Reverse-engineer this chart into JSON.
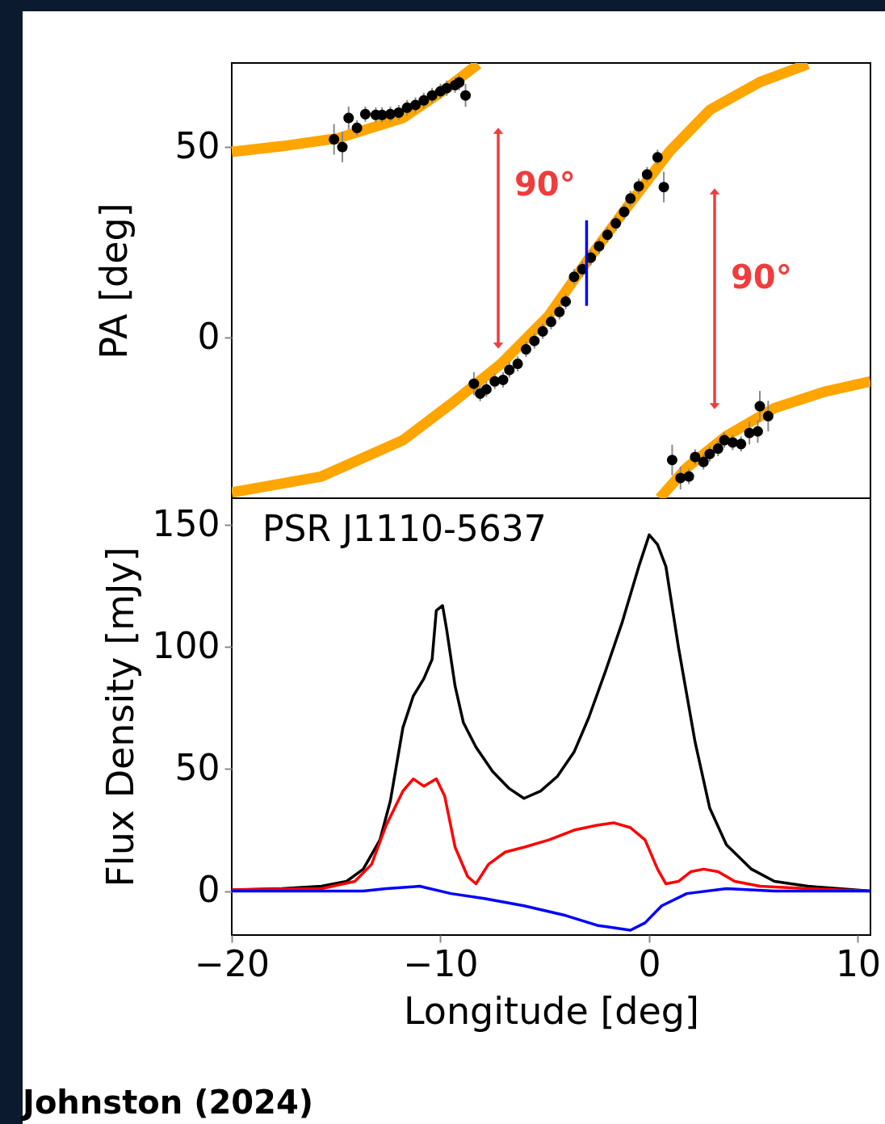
{
  "chart_data": [
    {
      "type": "line",
      "ylabel": "PA [deg]",
      "xlim": [
        -20,
        10.6
      ],
      "ylim": [
        -42,
        72
      ],
      "yticks": [
        0,
        50
      ],
      "tick_labels": "y",
      "grid": false,
      "annotations": [
        "90°",
        "90°"
      ],
      "series": [
        {
          "color": "#ffa500",
          "x": [
            -20,
            -17.6,
            -14.9,
            -11.8,
            -9.8,
            -8.2
          ],
          "values": [
            48.7,
            50.2,
            52.3,
            57.6,
            65,
            71.7
          ]
        },
        {
          "color": "#ffa500",
          "x": [
            -20,
            -15.7,
            -11.8,
            -9.5,
            -7.1,
            -4.8,
            -2.9,
            -0.9,
            1.0,
            2.9,
            5.3,
            7.6
          ],
          "values": [
            -40.5,
            -36.3,
            -26.8,
            -17.3,
            -6.8,
            5.9,
            20.7,
            35.4,
            49,
            59.7,
            67,
            71.7
          ]
        },
        {
          "color": "#ffa500",
          "x": [
            0.5,
            1.8,
            3.7,
            6.0,
            8.4,
            10.6
          ],
          "values": [
            -42,
            -34,
            -25.7,
            -18.4,
            -14.1,
            -11.4
          ]
        },
        {
          "type": "scatter",
          "color": "#000000",
          "marker": "circle",
          "x": [
            -15.1,
            -14.7,
            -14.4,
            -14.0,
            -13.6,
            -13.1,
            -12.8,
            -12.4,
            -12.0,
            -11.6,
            -11.2,
            -10.8,
            -10.4,
            -10.0,
            -9.7,
            -9.3,
            -9.1,
            -8.8,
            -8.4,
            -8.1,
            -7.8,
            -7.4,
            -7.0,
            -6.7,
            -6.3,
            -5.9,
            -5.5,
            -5.1,
            -4.7,
            -4.3,
            -4.0,
            -3.6,
            -3.2,
            -2.8,
            -2.4,
            -2.0,
            -1.6,
            -1.2,
            -0.9,
            -0.5,
            -0.1,
            0.4,
            0.7,
            1.1,
            1.5,
            1.9,
            2.2,
            2.6,
            2.9,
            3.3,
            3.6,
            4.0,
            4.4,
            4.8,
            5.2,
            5.3,
            5.7
          ],
          "values": [
            52,
            50,
            57.6,
            55,
            58.6,
            58.4,
            58.4,
            58.6,
            59,
            60.3,
            61,
            62.2,
            63.5,
            64.6,
            65.4,
            66.2,
            66.9,
            63.5,
            -12,
            -14.6,
            -13.5,
            -11.4,
            -11,
            -8.4,
            -6.8,
            -3,
            -0.8,
            1.7,
            4.2,
            6.8,
            9.5,
            16,
            18,
            21,
            24,
            27,
            30,
            33,
            36.5,
            39.7,
            42.8,
            47.3,
            39.5,
            -32,
            -36.7,
            -36.3,
            -31.2,
            -32.5,
            -30.4,
            -29,
            -26.8,
            -27.4,
            -27.8,
            -24.9,
            -24.5,
            -17.9,
            -20.5
          ],
          "errors": [
            4,
            4,
            3,
            2,
            2,
            2,
            2,
            2,
            2,
            2,
            2,
            2,
            2,
            2,
            2,
            2,
            2,
            3,
            3,
            2,
            2,
            2,
            2,
            2,
            2,
            2,
            2,
            2,
            2,
            2,
            2,
            2,
            2,
            2,
            2,
            2,
            2,
            2,
            2,
            2,
            2,
            2,
            4,
            4,
            3,
            2,
            2,
            2,
            2,
            2,
            2,
            2,
            2,
            3,
            3,
            4,
            4
          ]
        },
        {
          "color": "#0000ff",
          "x": [
            -3,
            -3
          ],
          "values": [
            8.4,
            30.8
          ]
        }
      ]
    },
    {
      "type": "line",
      "xlabel": "Longitude [deg]",
      "ylabel": "Flux Density [mJy]",
      "xlim": [
        -20,
        10.6
      ],
      "ylim": [
        -18,
        161
      ],
      "xticks": [
        {
          "value": -20,
          "label": "−20"
        },
        {
          "value": -10,
          "label": "−10"
        },
        {
          "value": 0,
          "label": "0"
        },
        {
          "value": 10,
          "label": "10"
        }
      ],
      "yticks": [
        0,
        50,
        100,
        150
      ],
      "grid": false,
      "annotations": [
        "PSR J1110-5637",
        "Johnston (2024)"
      ],
      "series": [
        {
          "color": "#000000",
          "x": [
            -20,
            -17.6,
            -15.7,
            -14.5,
            -13.7,
            -12.9,
            -12.4,
            -11.8,
            -11.3,
            -10.8,
            -10.4,
            -10.2,
            -9.9,
            -9.7,
            -9.3,
            -8.9,
            -8.3,
            -7.5,
            -6.7,
            -6.0,
            -5.2,
            -4.4,
            -3.6,
            -2.9,
            -2.1,
            -1.3,
            -0.5,
            0,
            0.4,
            0.8,
            1.4,
            2.2,
            2.9,
            3.7,
            4.9,
            6.0,
            7.6,
            9.1,
            10.6
          ],
          "values": [
            0.5,
            1,
            2,
            4,
            9,
            21,
            37,
            67,
            80,
            87,
            95,
            115,
            117,
            107,
            84,
            69,
            59,
            49,
            42,
            38,
            41,
            47,
            57,
            71,
            90,
            110,
            133,
            146,
            142,
            133,
            100,
            61,
            34,
            19,
            9,
            4,
            2,
            1,
            0
          ]
        },
        {
          "color": "#ff0000",
          "x": [
            -20,
            -15.7,
            -14.1,
            -13.3,
            -12.6,
            -11.8,
            -11.3,
            -10.8,
            -10.2,
            -9.8,
            -9.3,
            -8.7,
            -8.3,
            -7.7,
            -6.9,
            -6.0,
            -4.8,
            -3.6,
            -2.5,
            -1.7,
            -0.9,
            -0.2,
            0.4,
            0.8,
            1.4,
            2.0,
            2.6,
            3.3,
            4.1,
            5.3,
            7.6,
            10.6
          ],
          "values": [
            0.5,
            1,
            4,
            11,
            27,
            41,
            46,
            43,
            46,
            39,
            18,
            6,
            3,
            11,
            16,
            18,
            21,
            25,
            27,
            28,
            26,
            21,
            9,
            3,
            4,
            8,
            9,
            8,
            4,
            2,
            1,
            0
          ]
        },
        {
          "color": "#0000ff",
          "x": [
            -20,
            -16.4,
            -13.7,
            -12.6,
            -11.0,
            -9.5,
            -7.9,
            -6.0,
            -4.0,
            -2.5,
            -0.9,
            -0.2,
            0.6,
            1.8,
            3.7,
            6.0,
            8.4,
            10.6
          ],
          "values": [
            0,
            0,
            0,
            1,
            2,
            -1,
            -3,
            -6,
            -10,
            -14,
            -16,
            -13,
            -6,
            -1,
            1,
            0,
            0,
            0
          ]
        }
      ]
    }
  ]
}
